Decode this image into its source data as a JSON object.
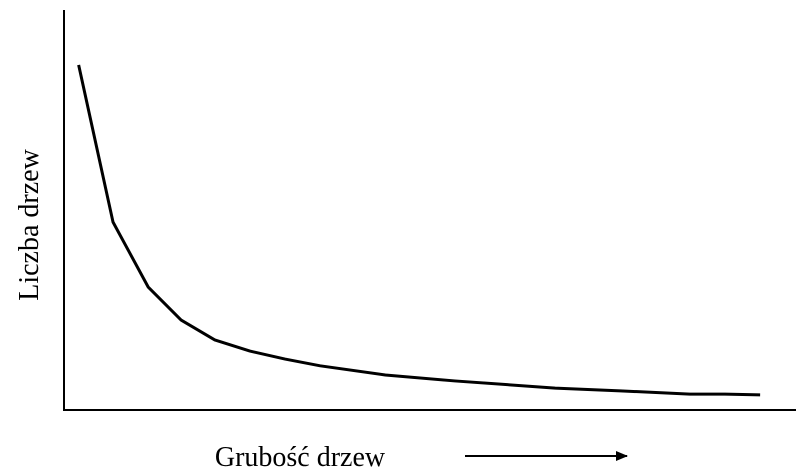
{
  "chart_data": {
    "type": "line",
    "x_label": "Grubość drzew",
    "y_label": "Liczba drzew",
    "x": [
      2.0,
      6.7,
      11.5,
      16.0,
      20.6,
      25.4,
      30.2,
      35.0,
      43.9,
      53.4,
      67.1,
      76.0,
      85.5,
      90.3,
      95.1
    ],
    "series": [
      {
        "color": "#000000",
        "values": [
          86.2,
          46.7,
          30.4,
          22.1,
          17.1,
          14.3,
          12.3,
          10.6,
          8.3,
          6.8,
          5.0,
          4.3,
          3.5,
          3.5,
          3.3
        ]
      }
    ],
    "xlim": [
      0,
      100
    ],
    "ylim": [
      0,
      100
    ]
  }
}
